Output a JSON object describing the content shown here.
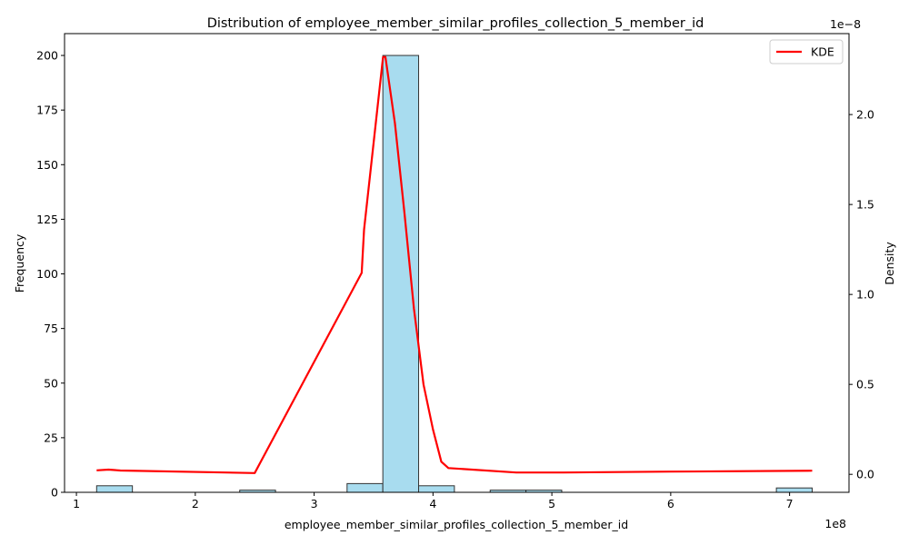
{
  "chart_data": {
    "type": "bar",
    "title": "Distribution of employee_member_similar_profiles_collection_5_member_id",
    "xlabel": "employee_member_similar_profiles_collection_5_member_id",
    "ylabel": "Frequency",
    "y2label": "Density",
    "x_offset_label": "1e8",
    "y2_offset_label": "1e−8",
    "x_scale": 100000000,
    "y2_scale": 1e-08,
    "xlim": [
      90000000,
      750000000
    ],
    "ylim": [
      0,
      210
    ],
    "y2lim": [
      -1e-09,
      2.45e-08
    ],
    "x_ticks": [
      1,
      2,
      3,
      4,
      5,
      6,
      7
    ],
    "x_tick_labels": [
      "1",
      "2",
      "3",
      "4",
      "5",
      "6",
      "7"
    ],
    "y_ticks": [
      0,
      25,
      50,
      75,
      100,
      125,
      150,
      175,
      200
    ],
    "y_tick_labels": [
      "0",
      "25",
      "50",
      "75",
      "100",
      "125",
      "150",
      "175",
      "200"
    ],
    "y2_ticks": [
      0.0,
      0.5,
      1.0,
      1.5,
      2.0
    ],
    "y2_tick_labels": [
      "0.0",
      "0.5",
      "1.0",
      "1.5",
      "2.0"
    ],
    "grid": false,
    "legend": {
      "position": "top-right",
      "entries": [
        {
          "label": "KDE",
          "color": "#ff0000"
        }
      ]
    },
    "histogram": {
      "color": "#a8dcef",
      "edge_color": "#333333",
      "bin_edges": [
        117000000,
        147100000,
        177200000,
        207300000,
        237400000,
        267500000,
        297600000,
        327700000,
        357800000,
        387900000,
        418000000,
        448100000,
        478200000,
        508300000,
        538400000,
        568500000,
        598600000,
        628700000,
        658800000,
        688900000,
        719000000
      ],
      "counts": [
        3,
        0,
        0,
        0,
        1,
        0,
        0,
        4,
        200,
        3,
        0,
        1,
        1,
        0,
        0,
        0,
        0,
        0,
        0,
        2
      ]
    },
    "series": [
      {
        "name": "KDE",
        "color": "#ff0000",
        "x": [
          117000000,
          127000000,
          137000000,
          250000000,
          340000000,
          342000000,
          358000000,
          360000000,
          368000000,
          376000000,
          384000000,
          392000000,
          400000000,
          407000000,
          413000000,
          470000000,
          510000000,
          600000000,
          719000000
        ],
        "y": [
          2.2e-10,
          2.6e-10,
          2.1e-10,
          7e-11,
          1.12e-08,
          1.36e-08,
          2.32e-08,
          2.32e-08,
          1.95e-08,
          1.45e-08,
          9.2e-09,
          5e-09,
          2.5e-09,
          7e-10,
          3.5e-10,
          1e-10,
          1e-10,
          1.5e-10,
          2e-10
        ]
      }
    ]
  }
}
